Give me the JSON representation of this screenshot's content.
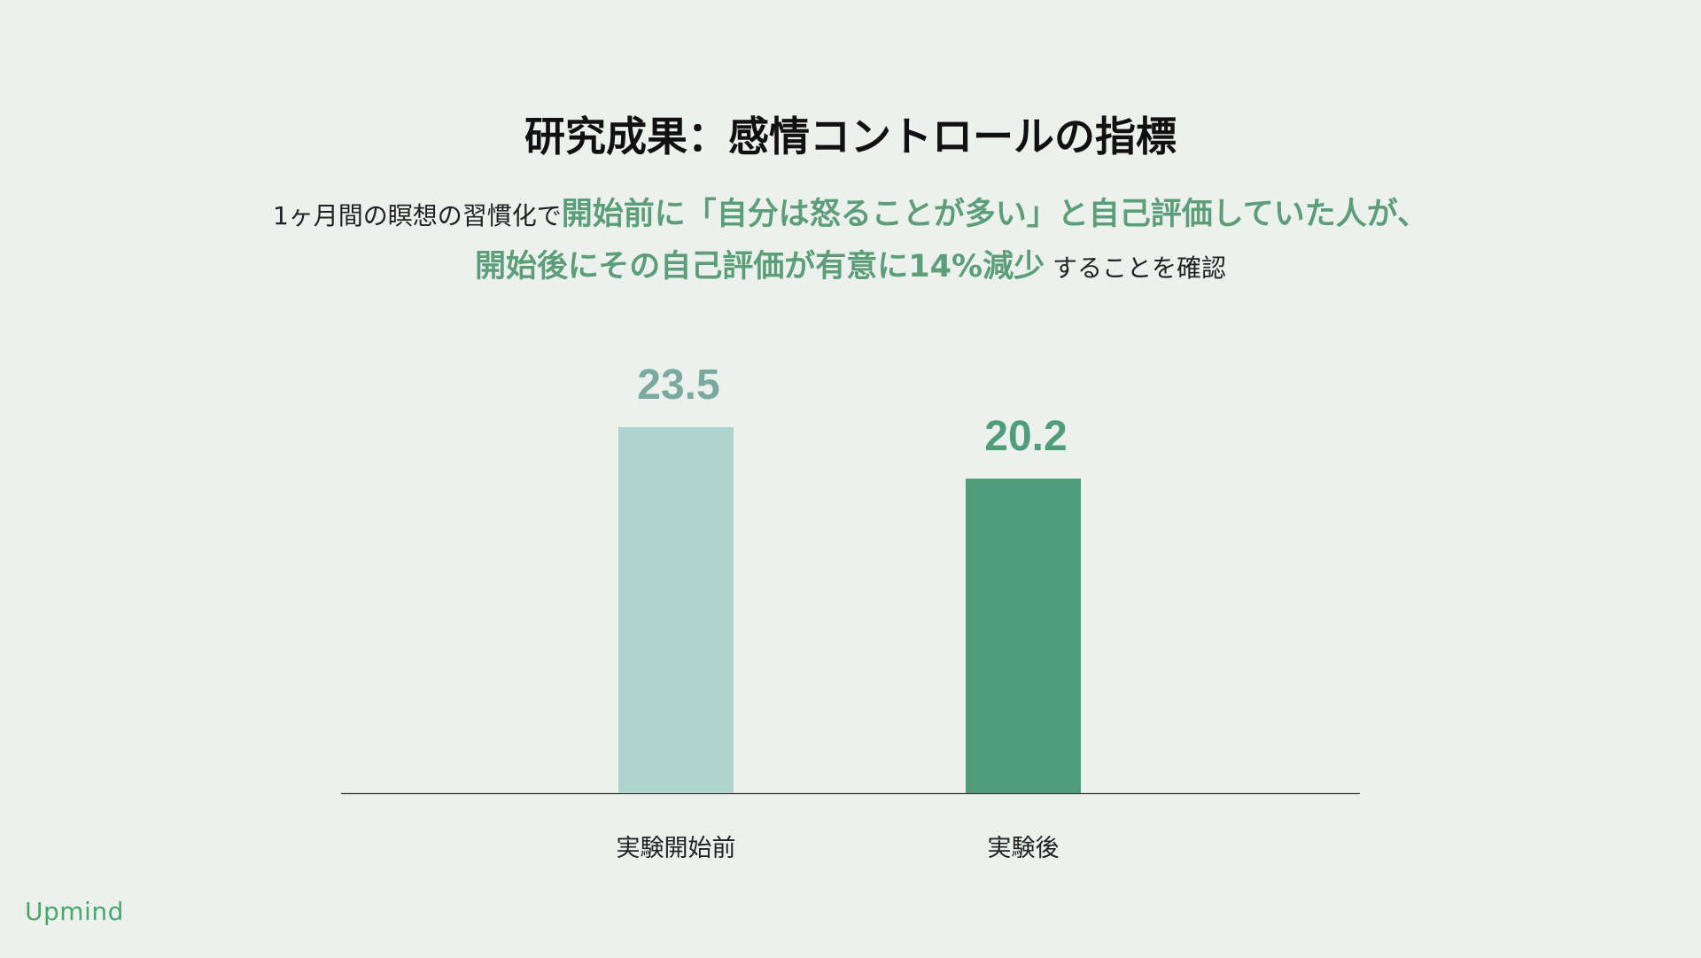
{
  "header": {
    "title": "研究成果：感情コントロールの指標",
    "subtitle_line1_plain": "1ヶ月間の瞑想の習慣化で",
    "subtitle_line1_highlight": "開始前に「自分は怒ることが多い」と自己評価していた人が、",
    "subtitle_line2_highlight": "開始後にその自己評価が有意に14%減少",
    "subtitle_line2_plain": " することを確認"
  },
  "chart_data": {
    "type": "bar",
    "categories": [
      "実験開始前",
      "実験後"
    ],
    "values": [
      23.5,
      20.2
    ],
    "value_labels": [
      "23.5",
      "20.2"
    ],
    "colors": [
      "#afd3cf",
      "#4f9d7b"
    ],
    "label_colors": [
      "#7aaa9f",
      "#4f9d7b"
    ],
    "title": "",
    "xlabel": "",
    "ylabel": "",
    "ylim": [
      0,
      23.5
    ],
    "grid": false,
    "legend": "none"
  },
  "footer": {
    "logo": "Upmind"
  }
}
